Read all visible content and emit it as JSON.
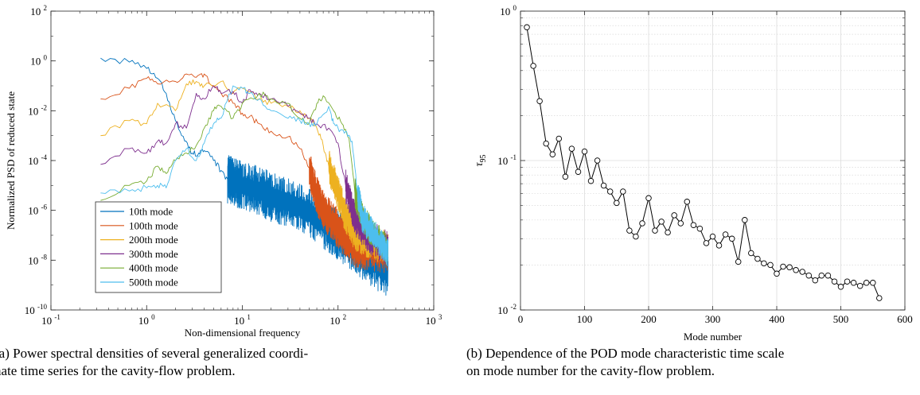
{
  "chart_data": [
    {
      "type": "line",
      "xscale": "log",
      "yscale": "log",
      "xlim": [
        0.1,
        1000
      ],
      "ylim": [
        1e-10,
        100
      ],
      "xlabel": "Non-dimensional frequency",
      "ylabel": "Normalized PSD of reduced state",
      "xticks": [
        {
          "value": 0.1,
          "base": "10",
          "exp": "-1"
        },
        {
          "value": 1,
          "base": "10",
          "exp": "0"
        },
        {
          "value": 10,
          "base": "10",
          "exp": "1"
        },
        {
          "value": 100,
          "base": "10",
          "exp": "2"
        },
        {
          "value": 1000,
          "base": "10",
          "exp": "3"
        }
      ],
      "yticks": [
        {
          "value": 1e-10,
          "base": "10",
          "exp": "-10"
        },
        {
          "value": 1e-08,
          "base": "10",
          "exp": "-8"
        },
        {
          "value": 1e-06,
          "base": "10",
          "exp": "-6"
        },
        {
          "value": 0.0001,
          "base": "10",
          "exp": "-4"
        },
        {
          "value": 0.01,
          "base": "10",
          "exp": "-2"
        },
        {
          "value": 1,
          "base": "10",
          "exp": "0"
        },
        {
          "value": 100,
          "base": "10",
          "exp": "2"
        }
      ],
      "grid": false,
      "legend_position": "lower-left",
      "series": [
        {
          "name": "10th mode",
          "color": "#0072BD",
          "noise_start": 8,
          "noise_amp": 1.0,
          "points": [
            [
              0.33,
              1.3
            ],
            [
              0.66,
              0.9
            ],
            [
              1.0,
              0.5
            ],
            [
              1.3,
              0.2
            ],
            [
              1.6,
              0.05
            ],
            [
              2.0,
              0.004
            ],
            [
              2.5,
              0.0006
            ],
            [
              3.0,
              0.0002
            ],
            [
              3.5,
              0.0002
            ],
            [
              4.0,
              0.00025
            ],
            [
              5.0,
              0.0001
            ],
            [
              6.0,
              4e-05
            ],
            [
              7.0,
              1.8e-05
            ],
            [
              8.0,
              1.5e-05
            ],
            [
              10,
              1e-05
            ],
            [
              15,
              6e-06
            ],
            [
              20,
              3.5e-06
            ],
            [
              30,
              2e-06
            ],
            [
              50,
              8e-07
            ],
            [
              80,
              2e-07
            ],
            [
              100,
              1e-07
            ],
            [
              150,
              3e-08
            ],
            [
              200,
              1.2e-08
            ],
            [
              333,
              3e-09
            ]
          ]
        },
        {
          "name": "100th mode",
          "color": "#D95319",
          "noise_start": 60,
          "noise_amp": 0.8,
          "points": [
            [
              0.33,
              0.03
            ],
            [
              0.66,
              0.08
            ],
            [
              1.0,
              0.2
            ],
            [
              1.3,
              0.12
            ],
            [
              2.0,
              0.15
            ],
            [
              2.6,
              0.3
            ],
            [
              3.3,
              0.22
            ],
            [
              4.0,
              0.3
            ],
            [
              5.0,
              0.1
            ],
            [
              6.0,
              0.05
            ],
            [
              8.0,
              0.02
            ],
            [
              10,
              0.008
            ],
            [
              12,
              0.006
            ],
            [
              15,
              0.003
            ],
            [
              20,
              0.0015
            ],
            [
              30,
              0.0009
            ],
            [
              40,
              0.0003
            ],
            [
              50,
              5e-05
            ],
            [
              60,
              4e-06
            ],
            [
              70,
              1e-06
            ],
            [
              90,
              3e-07
            ],
            [
              120,
              8e-08
            ],
            [
              150,
              3e-08
            ],
            [
              200,
              2.5e-08
            ],
            [
              333,
              1.8e-08
            ]
          ]
        },
        {
          "name": "200th mode",
          "color": "#EDB120",
          "noise_start": 100,
          "noise_amp": 0.7,
          "points": [
            [
              0.33,
              0.001
            ],
            [
              0.66,
              0.004
            ],
            [
              1.0,
              0.003
            ],
            [
              1.3,
              0.02
            ],
            [
              2.0,
              0.01
            ],
            [
              2.6,
              0.12
            ],
            [
              3.3,
              0.15
            ],
            [
              4.0,
              0.1
            ],
            [
              6.0,
              0.15
            ],
            [
              8.0,
              0.05
            ],
            [
              10,
              0.08
            ],
            [
              15,
              0.03
            ],
            [
              20,
              0.02
            ],
            [
              30,
              0.015
            ],
            [
              40,
              0.01
            ],
            [
              50,
              0.005
            ],
            [
              60,
              0.002
            ],
            [
              70,
              0.0004
            ],
            [
              80,
              6e-05
            ],
            [
              100,
              5e-06
            ],
            [
              120,
              6e-07
            ],
            [
              150,
              1.2e-07
            ],
            [
              200,
              6e-08
            ],
            [
              333,
              3e-08
            ]
          ]
        },
        {
          "name": "300th mode",
          "color": "#7E2F8E",
          "noise_start": 150,
          "noise_amp": 0.7,
          "points": [
            [
              0.33,
              7e-05
            ],
            [
              0.66,
              0.0003
            ],
            [
              1.0,
              0.0002
            ],
            [
              1.3,
              0.0006
            ],
            [
              1.6,
              0.0005
            ],
            [
              2.0,
              0.003
            ],
            [
              2.6,
              0.002
            ],
            [
              3.3,
              0.05
            ],
            [
              4.0,
              0.03
            ],
            [
              5.0,
              0.1
            ],
            [
              6.0,
              0.05
            ],
            [
              8.0,
              0.06
            ],
            [
              10,
              0.02
            ],
            [
              12,
              0.07
            ],
            [
              15,
              0.05
            ],
            [
              20,
              0.03
            ],
            [
              30,
              0.015
            ],
            [
              40,
              0.008
            ],
            [
              50,
              0.005
            ],
            [
              60,
              0.003
            ],
            [
              80,
              0.002
            ],
            [
              100,
              0.0005
            ],
            [
              120,
              1e-05
            ],
            [
              150,
              5e-07
            ],
            [
              200,
              1e-07
            ],
            [
              333,
              3e-08
            ]
          ]
        },
        {
          "name": "400th mode",
          "color": "#77AC30",
          "noise_start": 170,
          "noise_amp": 0.6,
          "points": [
            [
              0.33,
              2.5e-06
            ],
            [
              0.66,
              1e-05
            ],
            [
              1.0,
              1.5e-05
            ],
            [
              1.3,
              6e-05
            ],
            [
              1.6,
              3e-05
            ],
            [
              2.0,
              0.0001
            ],
            [
              2.6,
              0.0002
            ],
            [
              3.3,
              0.0004
            ],
            [
              4.0,
              0.002
            ],
            [
              5.0,
              0.01
            ],
            [
              6.0,
              0.015
            ],
            [
              8.0,
              0.005
            ],
            [
              10,
              0.02
            ],
            [
              15,
              0.05
            ],
            [
              20,
              0.03
            ],
            [
              30,
              0.02
            ],
            [
              40,
              0.005
            ],
            [
              50,
              0.003
            ],
            [
              60,
              0.02
            ],
            [
              70,
              0.04
            ],
            [
              90,
              0.01
            ],
            [
              110,
              0.003
            ],
            [
              130,
              0.0008
            ],
            [
              150,
              5e-06
            ],
            [
              180,
              5e-07
            ],
            [
              220,
              1.5e-07
            ],
            [
              333,
              2.5e-08
            ]
          ]
        },
        {
          "name": "500th mode",
          "color": "#4DBEEE",
          "noise_start": 180,
          "noise_amp": 0.6,
          "points": [
            [
              0.33,
              5e-06
            ],
            [
              0.66,
              6e-06
            ],
            [
              1.0,
              8e-06
            ],
            [
              1.3,
              1e-05
            ],
            [
              1.6,
              8e-06
            ],
            [
              2.0,
              0.0001
            ],
            [
              2.6,
              0.0003
            ],
            [
              3.3,
              0.0001
            ],
            [
              4.0,
              0.0005
            ],
            [
              5.0,
              0.003
            ],
            [
              6.0,
              0.005
            ],
            [
              8.0,
              0.1
            ],
            [
              10,
              0.08
            ],
            [
              12,
              0.05
            ],
            [
              15,
              0.03
            ],
            [
              20,
              0.01
            ],
            [
              30,
              0.005
            ],
            [
              40,
              0.004
            ],
            [
              50,
              0.003
            ],
            [
              60,
              0.003
            ],
            [
              80,
              0.015
            ],
            [
              90,
              0.003
            ],
            [
              100,
              0.002
            ],
            [
              120,
              0.0015
            ],
            [
              140,
              0.0006
            ],
            [
              160,
              5e-06
            ],
            [
              180,
              5e-07
            ],
            [
              220,
              1.5e-07
            ],
            [
              333,
              2e-08
            ]
          ]
        }
      ]
    },
    {
      "type": "line",
      "yscale": "log",
      "xlim": [
        0,
        600
      ],
      "ylim": [
        0.01,
        1
      ],
      "xlabel": "Mode number",
      "ylabel_symbol": "τ",
      "ylabel_subscript": "95",
      "xticks": [
        0,
        100,
        200,
        300,
        400,
        500,
        600
      ],
      "yticks": [
        {
          "value": 0.01,
          "base": "10",
          "exp": "-2"
        },
        {
          "value": 0.1,
          "base": "10",
          "exp": "-1"
        },
        {
          "value": 1,
          "base": "10",
          "exp": "0"
        }
      ],
      "grid": true,
      "marker": "circle",
      "series": [
        {
          "color": "#000000",
          "x": [
            10,
            20,
            30,
            40,
            50,
            60,
            70,
            80,
            90,
            100,
            110,
            120,
            130,
            140,
            150,
            160,
            170,
            180,
            190,
            200,
            210,
            220,
            230,
            240,
            250,
            260,
            270,
            280,
            290,
            300,
            310,
            320,
            330,
            340,
            350,
            360,
            370,
            380,
            390,
            400,
            410,
            420,
            430,
            440,
            450,
            460,
            470,
            480,
            490,
            500,
            510,
            520,
            530,
            540,
            550,
            560
          ],
          "y": [
            0.78,
            0.43,
            0.25,
            0.13,
            0.11,
            0.14,
            0.078,
            0.12,
            0.084,
            0.115,
            0.073,
            0.1,
            0.068,
            0.062,
            0.052,
            0.062,
            0.034,
            0.031,
            0.038,
            0.056,
            0.034,
            0.039,
            0.033,
            0.043,
            0.038,
            0.053,
            0.037,
            0.035,
            0.028,
            0.031,
            0.027,
            0.032,
            0.03,
            0.021,
            0.04,
            0.024,
            0.022,
            0.0205,
            0.02,
            0.0175,
            0.0195,
            0.0193,
            0.0185,
            0.018,
            0.017,
            0.0158,
            0.017,
            0.017,
            0.0155,
            0.0143,
            0.0155,
            0.0152,
            0.0145,
            0.0152,
            0.0152,
            0.012
          ]
        }
      ]
    }
  ],
  "captions": {
    "a": {
      "line1": "(a) Power spectral densities of several generalized coordi-",
      "line2": "nate time series for the cavity-flow problem."
    },
    "b": {
      "line1": "(b) Dependence of the POD mode characteristic time scale",
      "line2": "on mode number for the cavity-flow problem."
    }
  }
}
